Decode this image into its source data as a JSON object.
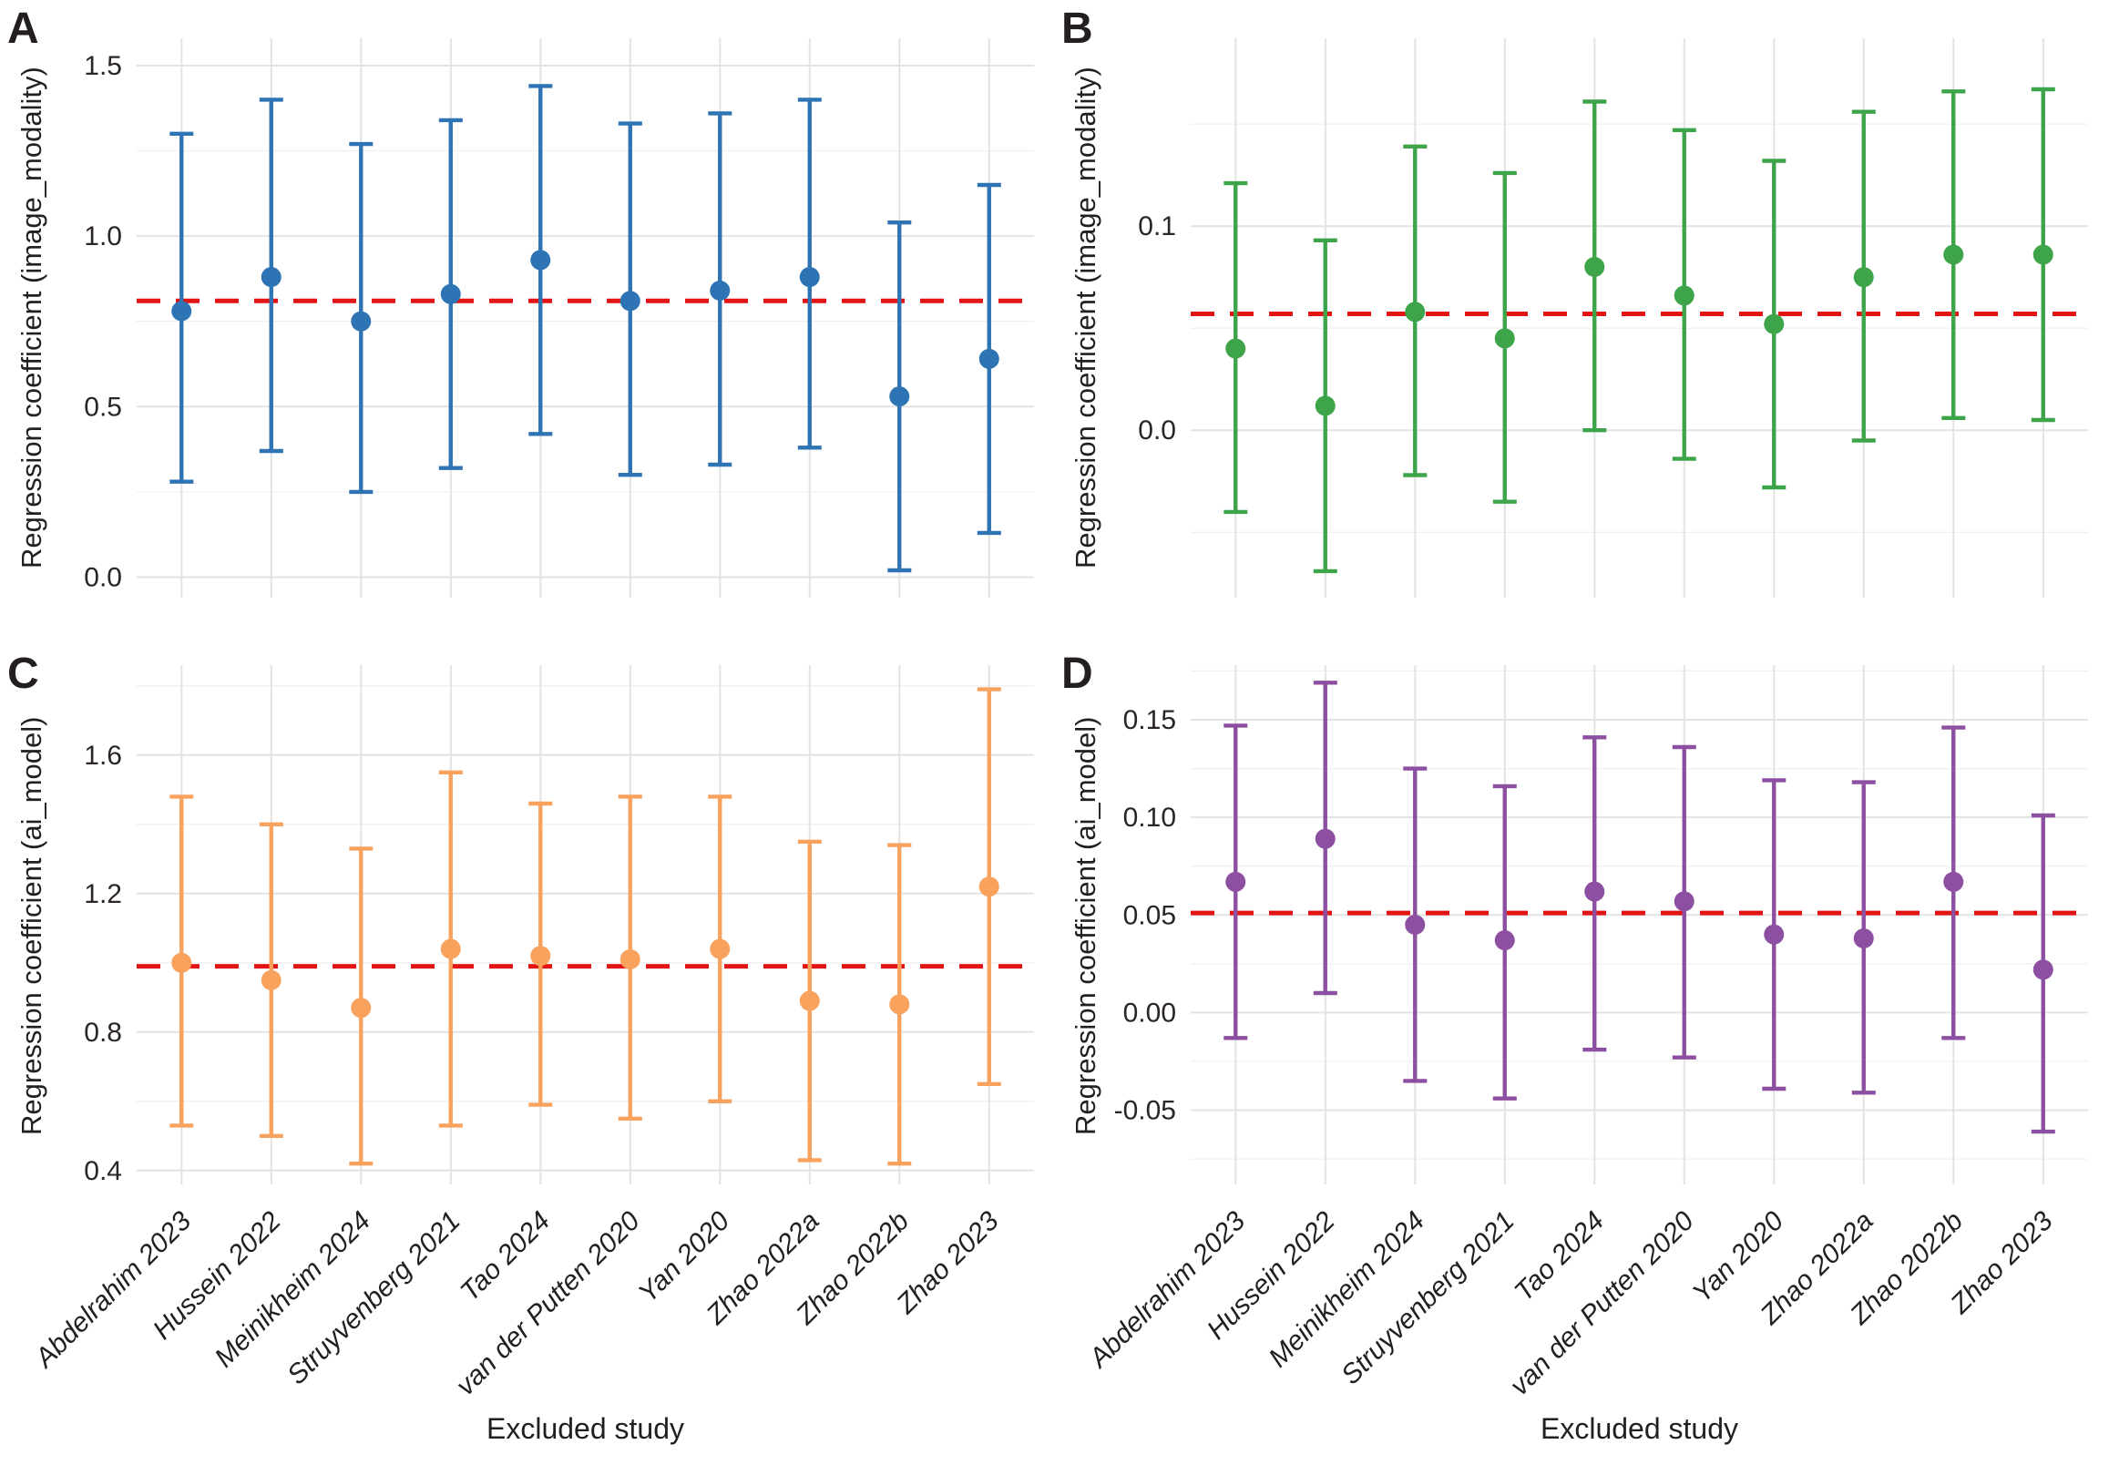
{
  "figure": {
    "background": "#ffffff",
    "ref_line_color": "#e31414",
    "grid": "on",
    "legend": "none"
  },
  "chart_data": {
    "type": "scatter",
    "subtype": "leave-one-out sensitivity analysis, point estimates with 95% CI error bars and pooled-estimate dashed reference line",
    "categories": [
      "Abdelrahim 2023",
      "Hussein 2022",
      "Meinikheim 2024",
      "Struyvenberg 2021",
      "Tao 2024",
      "van der Putten 2020",
      "Yan 2020",
      "Zhao 2022a",
      "Zhao 2022b",
      "Zhao 2023"
    ],
    "xlabel": "Excluded study",
    "panels": [
      {
        "panel": "A",
        "color": "#2e73b3",
        "ylabel": "Regression coefficient (image_modality)",
        "ref_line": 0.81,
        "ylim": [
          -0.06,
          1.58
        ],
        "minor_step": 0.25,
        "yticks": {
          "values": [
            0.0,
            0.5,
            1.0,
            1.5
          ],
          "labels": [
            "0.0",
            "0.5",
            "1.0",
            "1.5"
          ]
        },
        "estimates": [
          0.78,
          0.88,
          0.75,
          0.83,
          0.93,
          0.81,
          0.84,
          0.88,
          0.53,
          0.64
        ],
        "ci_low": [
          0.28,
          0.37,
          0.25,
          0.32,
          0.42,
          0.3,
          0.33,
          0.38,
          0.02,
          0.13
        ],
        "ci_high": [
          1.3,
          1.4,
          1.27,
          1.34,
          1.44,
          1.33,
          1.36,
          1.4,
          1.04,
          1.15
        ]
      },
      {
        "panel": "B",
        "color": "#3ea44a",
        "ylabel": "Regression coefficient (image_modality)",
        "ref_line": 0.057,
        "ylim": [
          -0.082,
          0.192
        ],
        "minor_step": 0.05,
        "yticks": {
          "values": [
            0.0,
            0.1
          ],
          "labels": [
            "0.0",
            "0.1"
          ]
        },
        "estimates": [
          0.04,
          0.012,
          0.058,
          0.045,
          0.08,
          0.066,
          0.052,
          0.075,
          0.086,
          0.086
        ],
        "ci_low": [
          -0.04,
          -0.069,
          -0.022,
          -0.035,
          0.0,
          -0.014,
          -0.028,
          -0.005,
          0.006,
          0.005
        ],
        "ci_high": [
          0.121,
          0.093,
          0.139,
          0.126,
          0.161,
          0.147,
          0.132,
          0.156,
          0.166,
          0.167
        ]
      },
      {
        "panel": "C",
        "color": "#f8a25e",
        "ylabel": "Regression coefficient (ai_model)",
        "ref_line": 0.99,
        "ylim": [
          0.36,
          1.86
        ],
        "minor_step": 0.2,
        "yticks": {
          "values": [
            0.4,
            0.8,
            1.2,
            1.6
          ],
          "labels": [
            "0.4",
            "0.8",
            "1.2",
            "1.6"
          ]
        },
        "estimates": [
          1.0,
          0.95,
          0.87,
          1.04,
          1.02,
          1.01,
          1.04,
          0.89,
          0.88,
          1.22
        ],
        "ci_low": [
          0.53,
          0.5,
          0.42,
          0.53,
          0.59,
          0.55,
          0.6,
          0.43,
          0.42,
          0.65
        ],
        "ci_high": [
          1.48,
          1.4,
          1.33,
          1.55,
          1.46,
          1.48,
          1.48,
          1.35,
          1.34,
          1.79
        ]
      },
      {
        "panel": "D",
        "color": "#8d4fa1",
        "ylabel": "Regression coefficient (ai_model)",
        "ref_line": 0.051,
        "ylim": [
          -0.088,
          0.178
        ],
        "minor_step": 0.025,
        "yticks": {
          "values": [
            -0.05,
            0.0,
            0.05,
            0.1,
            0.15
          ],
          "labels": [
            "-0.05",
            "0.00",
            "0.05",
            "0.10",
            "0.15"
          ]
        },
        "estimates": [
          0.067,
          0.089,
          0.045,
          0.037,
          0.062,
          0.057,
          0.04,
          0.038,
          0.067,
          0.022
        ],
        "ci_low": [
          -0.013,
          0.01,
          -0.035,
          -0.044,
          -0.019,
          -0.023,
          -0.039,
          -0.041,
          -0.013,
          -0.061
        ],
        "ci_high": [
          0.147,
          0.169,
          0.125,
          0.116,
          0.141,
          0.136,
          0.119,
          0.118,
          0.146,
          0.101
        ]
      }
    ]
  }
}
